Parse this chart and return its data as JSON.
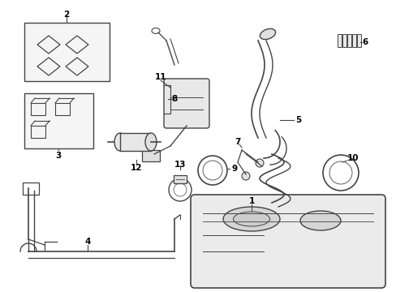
{
  "background_color": "#ffffff",
  "line_color": "#444444",
  "text_color": "#000000",
  "fig_w": 4.89,
  "fig_h": 3.6,
  "dpi": 100
}
